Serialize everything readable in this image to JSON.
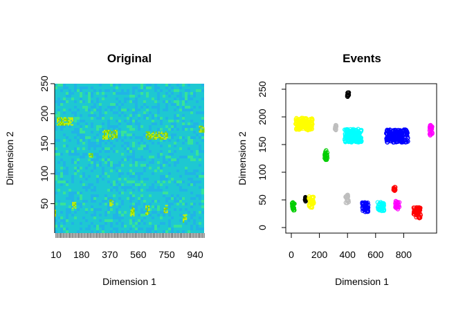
{
  "chart_data": [
    {
      "type": "heatmap",
      "title": "Original",
      "xlabel": "Dimension 1",
      "ylabel": "Dimension 2",
      "xlim": [
        1,
        1000
      ],
      "ylim": [
        1,
        250
      ],
      "x_tick_labels": [
        "10",
        "180",
        "370",
        "560",
        "750",
        "940"
      ],
      "y_tick_labels": [
        "50",
        "100",
        "150",
        "200",
        "250"
      ],
      "colors": {
        "background_a": "#1ec8d2",
        "background_b": "#21b4e6",
        "background_c": "#37e39a",
        "event": "#c8f000",
        "event_dark": "#86d400"
      },
      "events": [
        {
          "x": 70,
          "y": 188,
          "w": 110,
          "h": 12
        },
        {
          "x": 370,
          "y": 166,
          "w": 100,
          "h": 14
        },
        {
          "x": 680,
          "y": 164,
          "w": 140,
          "h": 13
        },
        {
          "x": 980,
          "y": 175,
          "w": 30,
          "h": 10
        },
        {
          "x": 240,
          "y": 131,
          "w": 20,
          "h": 6
        },
        {
          "x": 130,
          "y": 48,
          "w": 25,
          "h": 10
        },
        {
          "x": 380,
          "y": 52,
          "w": 25,
          "h": 10
        },
        {
          "x": 520,
          "y": 37,
          "w": 25,
          "h": 16
        },
        {
          "x": 620,
          "y": 39,
          "w": 25,
          "h": 16
        },
        {
          "x": 740,
          "y": 42,
          "w": 20,
          "h": 12
        },
        {
          "x": 870,
          "y": 26,
          "w": 25,
          "h": 12
        },
        {
          "x": 5,
          "y": 35,
          "w": 10,
          "h": 10
        }
      ]
    },
    {
      "type": "scatter",
      "title": "Events",
      "xlabel": "Dimension 1",
      "ylabel": "Dimension 2",
      "xlim": [
        0,
        1000
      ],
      "ylim": [
        0,
        250
      ],
      "x_tick_labels": [
        "0",
        "200",
        "400",
        "600",
        "800"
      ],
      "y_tick_labels": [
        "0",
        "50",
        "100",
        "150",
        "200",
        "250"
      ],
      "x_ticks": [
        0,
        200,
        400,
        600,
        800
      ],
      "y_ticks": [
        0,
        50,
        100,
        150,
        200,
        250
      ],
      "clusters": [
        {
          "color": "#ffff00",
          "x": [
            30,
            150
          ],
          "y": [
            176,
            198
          ]
        },
        {
          "color": "#000000",
          "x": [
            398,
            412
          ],
          "y": [
            234,
            244
          ]
        },
        {
          "color": "#bebebe",
          "x": [
            308,
            322
          ],
          "y": [
            176,
            186
          ]
        },
        {
          "color": "#00ffff",
          "x": [
            380,
            500
          ],
          "y": [
            154,
            178
          ]
        },
        {
          "color": "#0000ff",
          "x": [
            675,
            830
          ],
          "y": [
            154,
            177
          ]
        },
        {
          "color": "#ff00ff",
          "x": [
            985,
            1005
          ],
          "y": [
            166,
            186
          ]
        },
        {
          "color": "#00cd00",
          "x": [
            232,
            258
          ],
          "y": [
            122,
            140
          ]
        },
        {
          "color": "#ff0000",
          "x": [
            728,
            740
          ],
          "y": [
            65,
            74
          ]
        },
        {
          "color": "#00cd00",
          "x": [
            5,
            25
          ],
          "y": [
            30,
            46
          ]
        },
        {
          "color": "#000000",
          "x": [
            92,
            108
          ],
          "y": [
            47,
            55
          ]
        },
        {
          "color": "#ffff00",
          "x": [
            125,
            160
          ],
          "y": [
            36,
            56
          ]
        },
        {
          "color": "#bebebe",
          "x": [
            385,
            410
          ],
          "y": [
            44,
            60
          ]
        },
        {
          "color": "#0000ff",
          "x": [
            505,
            550
          ],
          "y": [
            28,
            46
          ]
        },
        {
          "color": "#00ffff",
          "x": [
            615,
            660
          ],
          "y": [
            30,
            46
          ]
        },
        {
          "color": "#ff00ff",
          "x": [
            740,
            770
          ],
          "y": [
            33,
            48
          ]
        },
        {
          "color": "#ff0000",
          "x": [
            870,
            920
          ],
          "y": [
            17,
            37
          ]
        }
      ]
    }
  ]
}
